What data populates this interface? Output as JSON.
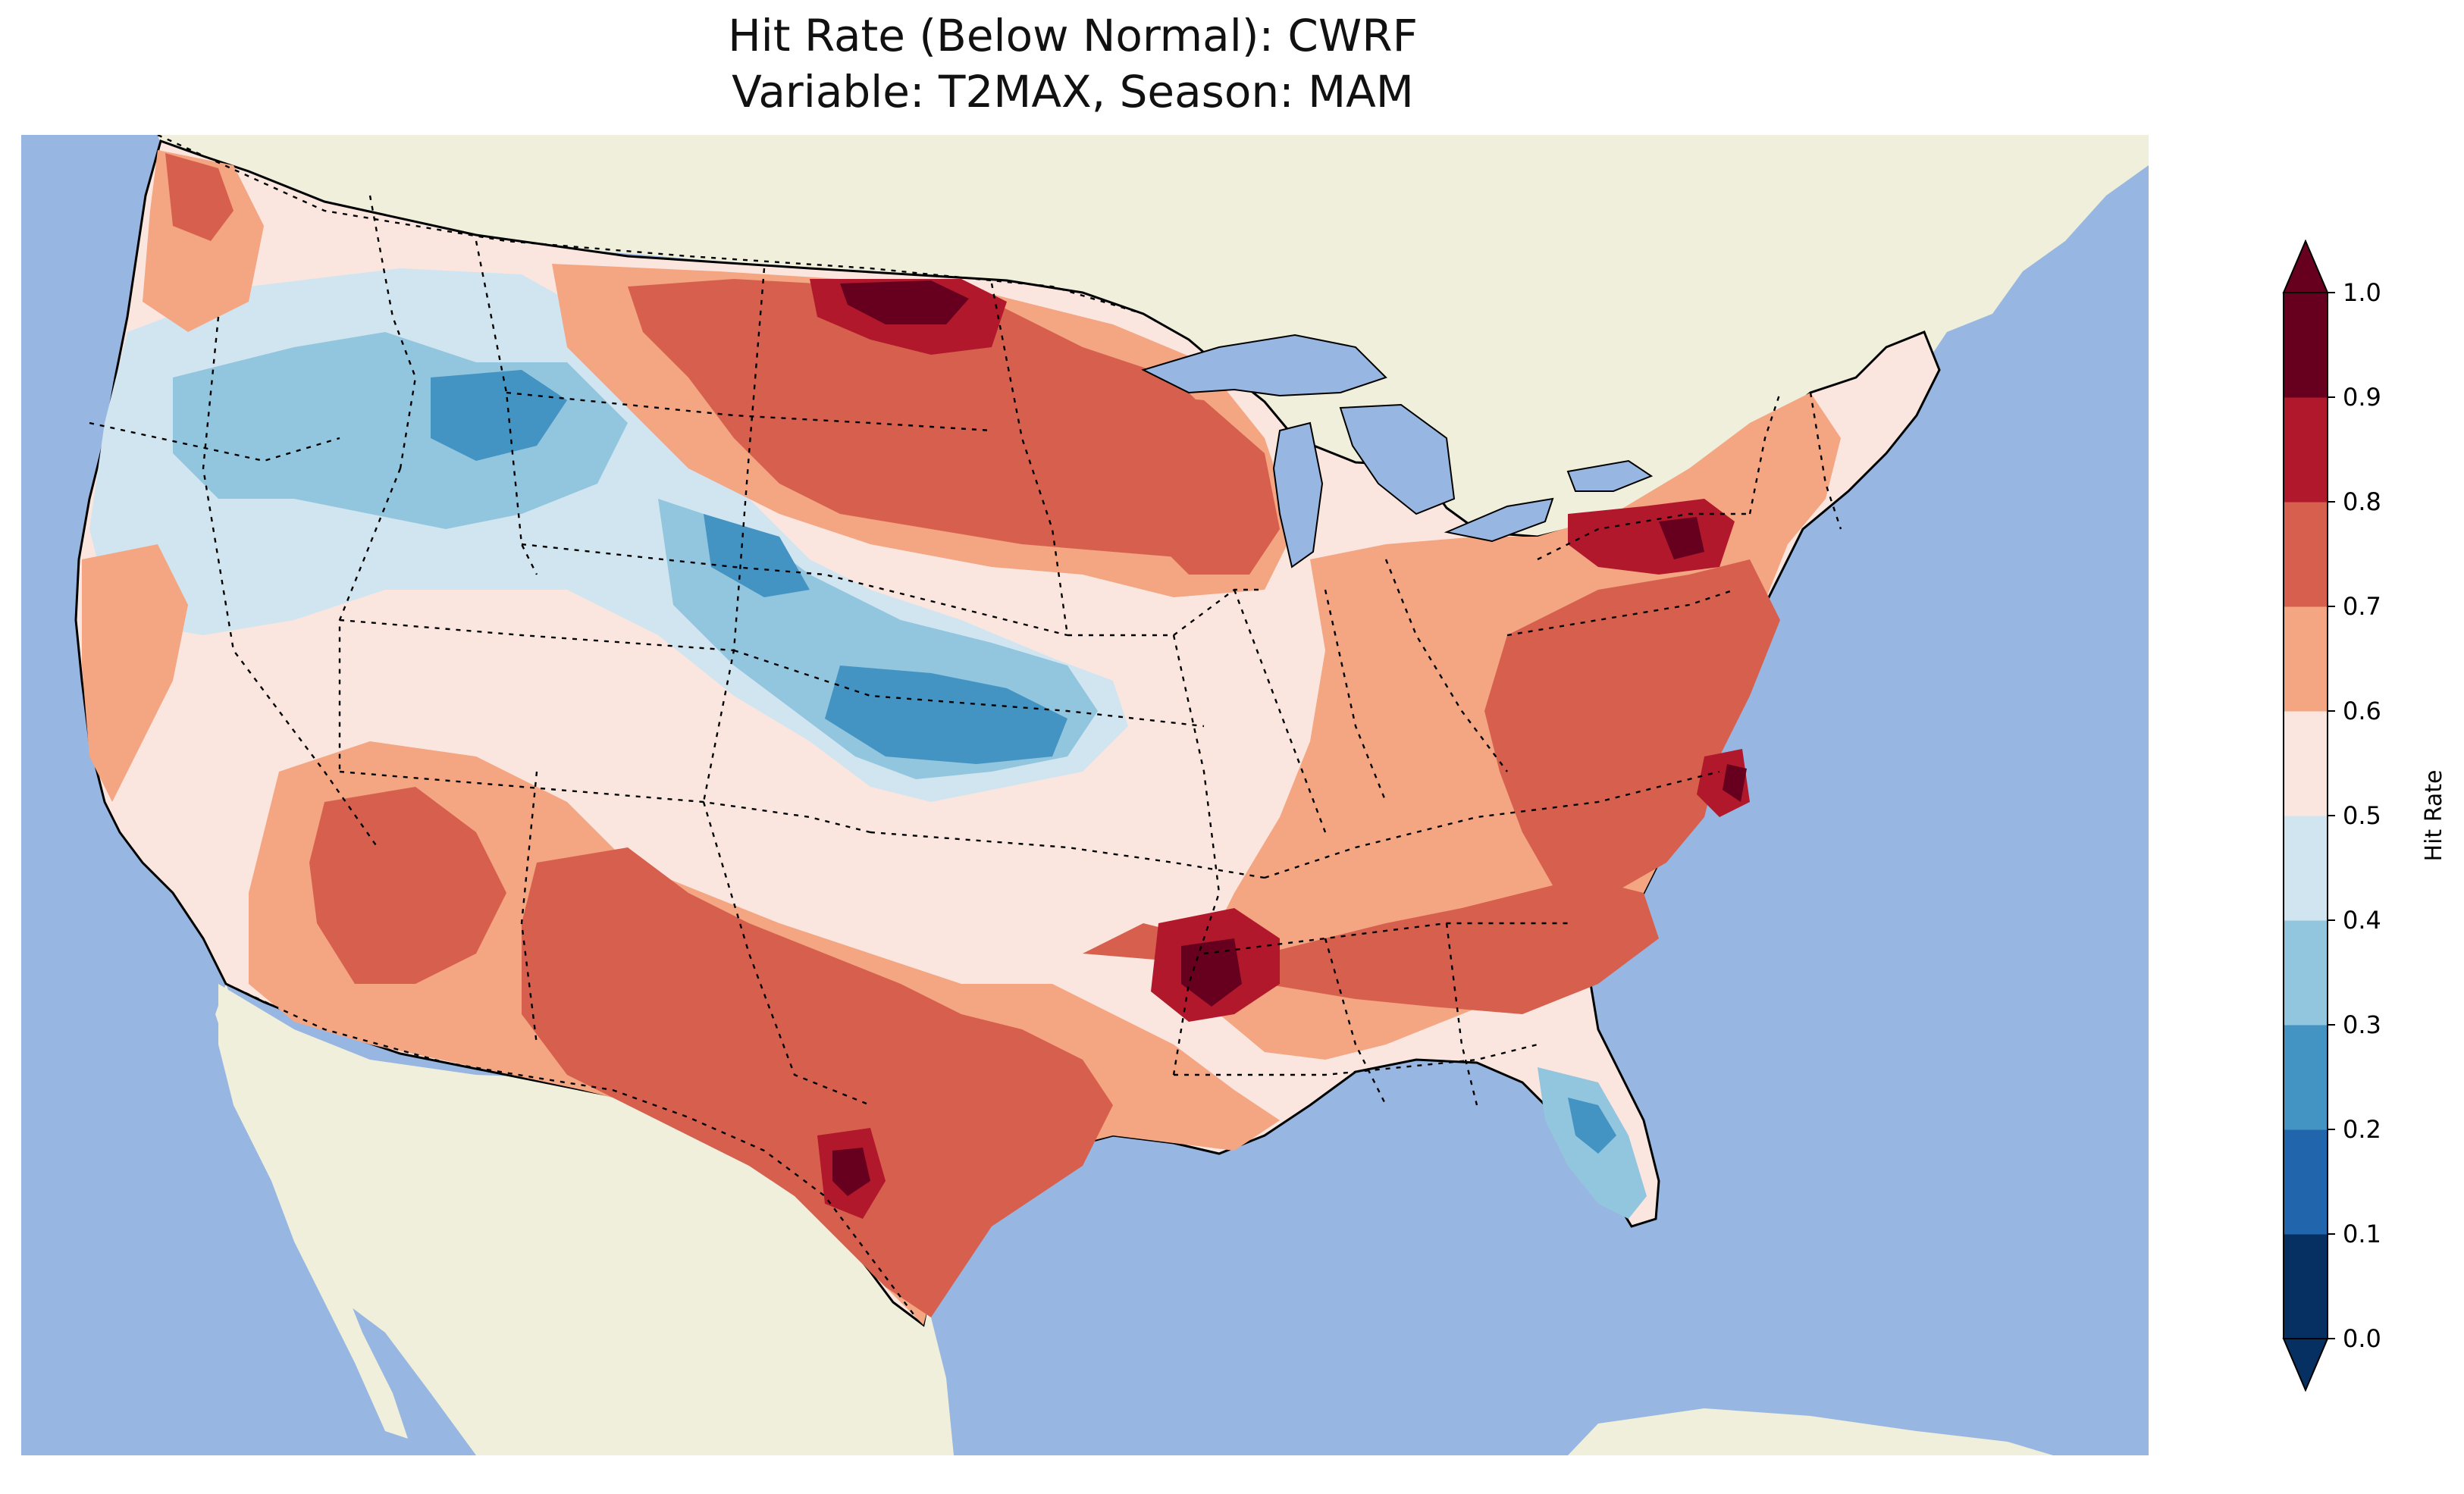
{
  "title_line1": "Hit Rate (Below Normal): CWRF",
  "title_line2": "Variable: T2MAX, Season: MAM",
  "colorbar": {
    "label": "Hit Rate",
    "ticks": [
      "0.0",
      "0.1",
      "0.2",
      "0.3",
      "0.4",
      "0.5",
      "0.6",
      "0.7",
      "0.8",
      "0.9",
      "1.0"
    ],
    "bins": [
      {
        "range": "0.0-0.1",
        "color": "#053061"
      },
      {
        "range": "0.1-0.2",
        "color": "#2166ac"
      },
      {
        "range": "0.2-0.3",
        "color": "#4393c3"
      },
      {
        "range": "0.3-0.4",
        "color": "#92c5de"
      },
      {
        "range": "0.4-0.5",
        "color": "#d1e5f0"
      },
      {
        "range": "0.5-0.6",
        "color": "#fae6df"
      },
      {
        "range": "0.6-0.7",
        "color": "#f4a582"
      },
      {
        "range": "0.7-0.8",
        "color": "#d6604d"
      },
      {
        "range": "0.8-0.9",
        "color": "#b2182b"
      },
      {
        "range": "0.9-1.0",
        "color": "#67001f"
      }
    ],
    "extend": "both"
  },
  "map": {
    "region": "Contiguous United States",
    "ocean_color": "#97b6e1",
    "land_color": "#efefdb",
    "features": [
      "coastlines",
      "state borders",
      "country borders",
      "great lakes"
    ]
  }
}
